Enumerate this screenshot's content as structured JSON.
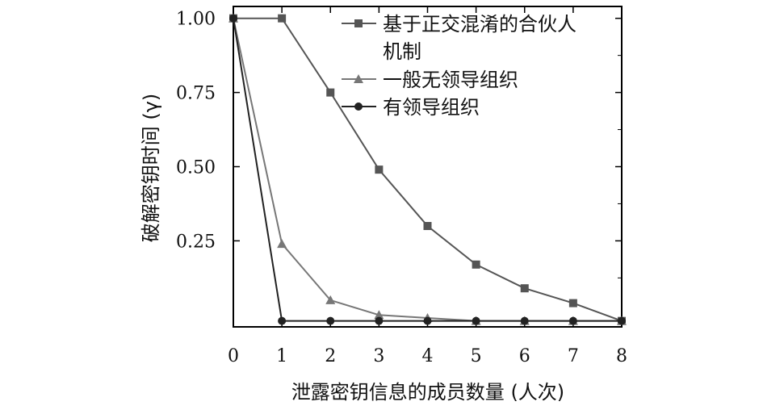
{
  "chart_data": {
    "type": "line",
    "xlabel": "泄露密钥信息的成员数量 (人次)",
    "ylabel": "破解密钥时间 (γ)",
    "xlim": [
      0,
      8
    ],
    "ylim": [
      -0.04,
      1.04
    ],
    "x_ticks": [
      0,
      1,
      2,
      3,
      4,
      5,
      6,
      7,
      8
    ],
    "y_ticks": [
      0.25,
      0.5,
      0.75,
      1.0
    ],
    "y_tick_labels": [
      "0.25",
      "0.50",
      "0.75",
      "1.00"
    ],
    "grid": false,
    "legend_position": "top-right",
    "series": [
      {
        "name_lines": [
          "基于正交混淆的合伙人",
          "机制"
        ],
        "marker": "square",
        "color": "#555555",
        "x": [
          0,
          1,
          2,
          3,
          4,
          5,
          6,
          7,
          8
        ],
        "y": [
          1.0,
          1.0,
          0.75,
          0.49,
          0.3,
          0.17,
          0.09,
          0.04,
          -0.02
        ]
      },
      {
        "name": "一般无领导组织",
        "marker": "triangle",
        "color": "#777777",
        "x": [
          0,
          1,
          2,
          3,
          4,
          5,
          6,
          7,
          8
        ],
        "y": [
          1.0,
          0.24,
          0.05,
          0.0,
          -0.01,
          -0.02,
          -0.02,
          -0.02,
          -0.02
        ]
      },
      {
        "name": "有领导组织",
        "marker": "circle",
        "color": "#222222",
        "x": [
          0,
          1,
          2,
          3,
          4,
          5,
          6,
          7,
          8
        ],
        "y": [
          1.0,
          -0.02,
          -0.02,
          -0.02,
          -0.02,
          -0.02,
          -0.02,
          -0.02,
          -0.02
        ]
      }
    ]
  }
}
